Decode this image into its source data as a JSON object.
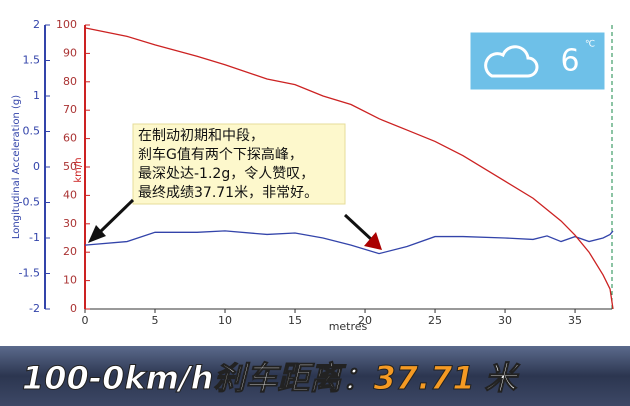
{
  "chart_data": {
    "type": "line",
    "x_label": "metres",
    "y_label": "Longitudinal Acceleration (g)",
    "y2_label": "km/h",
    "x": [
      0,
      3,
      5,
      8,
      10,
      13,
      15,
      17,
      19,
      21,
      23,
      25,
      27,
      30,
      32,
      33,
      34,
      35,
      36,
      37,
      37.5,
      37.71
    ],
    "series": [
      {
        "color": "#3344aa",
        "values": [
          -1.1,
          -1.05,
          -0.92,
          -0.92,
          -0.9,
          -0.95,
          -0.93,
          -1.0,
          -1.1,
          -1.22,
          -1.12,
          -0.98,
          -0.98,
          -1.0,
          -1.02,
          -0.97,
          -1.05,
          -0.98,
          -1.05,
          -1.0,
          -0.95,
          -0.9
        ]
      },
      {
        "color": "#cc2222",
        "axis": "y2",
        "values": [
          99,
          96,
          93,
          89,
          86,
          81,
          79,
          75,
          72,
          67,
          63,
          59,
          54,
          45,
          39,
          35,
          31,
          26,
          20,
          12,
          7,
          0
        ]
      }
    ],
    "xlim": [
      0,
      37.71
    ],
    "xticks": [
      0,
      5,
      10,
      15,
      20,
      25,
      30,
      35
    ],
    "ylim": [
      -2,
      2
    ],
    "yticks": [
      -2,
      -1.5,
      -1,
      -0.5,
      0,
      0.5,
      1,
      1.5,
      2
    ],
    "y2lim": [
      0,
      100
    ],
    "y2ticks": [
      0,
      10,
      20,
      30,
      40,
      50,
      60,
      70,
      80,
      90,
      100
    ],
    "annotation": [
      "在制动初期和中段，",
      "刹车G值有两个下探高峰，",
      "最深处达-1.2g，令人赞叹，",
      "最终成绩37.71米，非常好。"
    ],
    "weather": {
      "temperature": "6",
      "unit": "℃"
    },
    "banner": {
      "text": "100-0km/h刹车距离：",
      "value": "37.71",
      "unit": "米"
    }
  }
}
